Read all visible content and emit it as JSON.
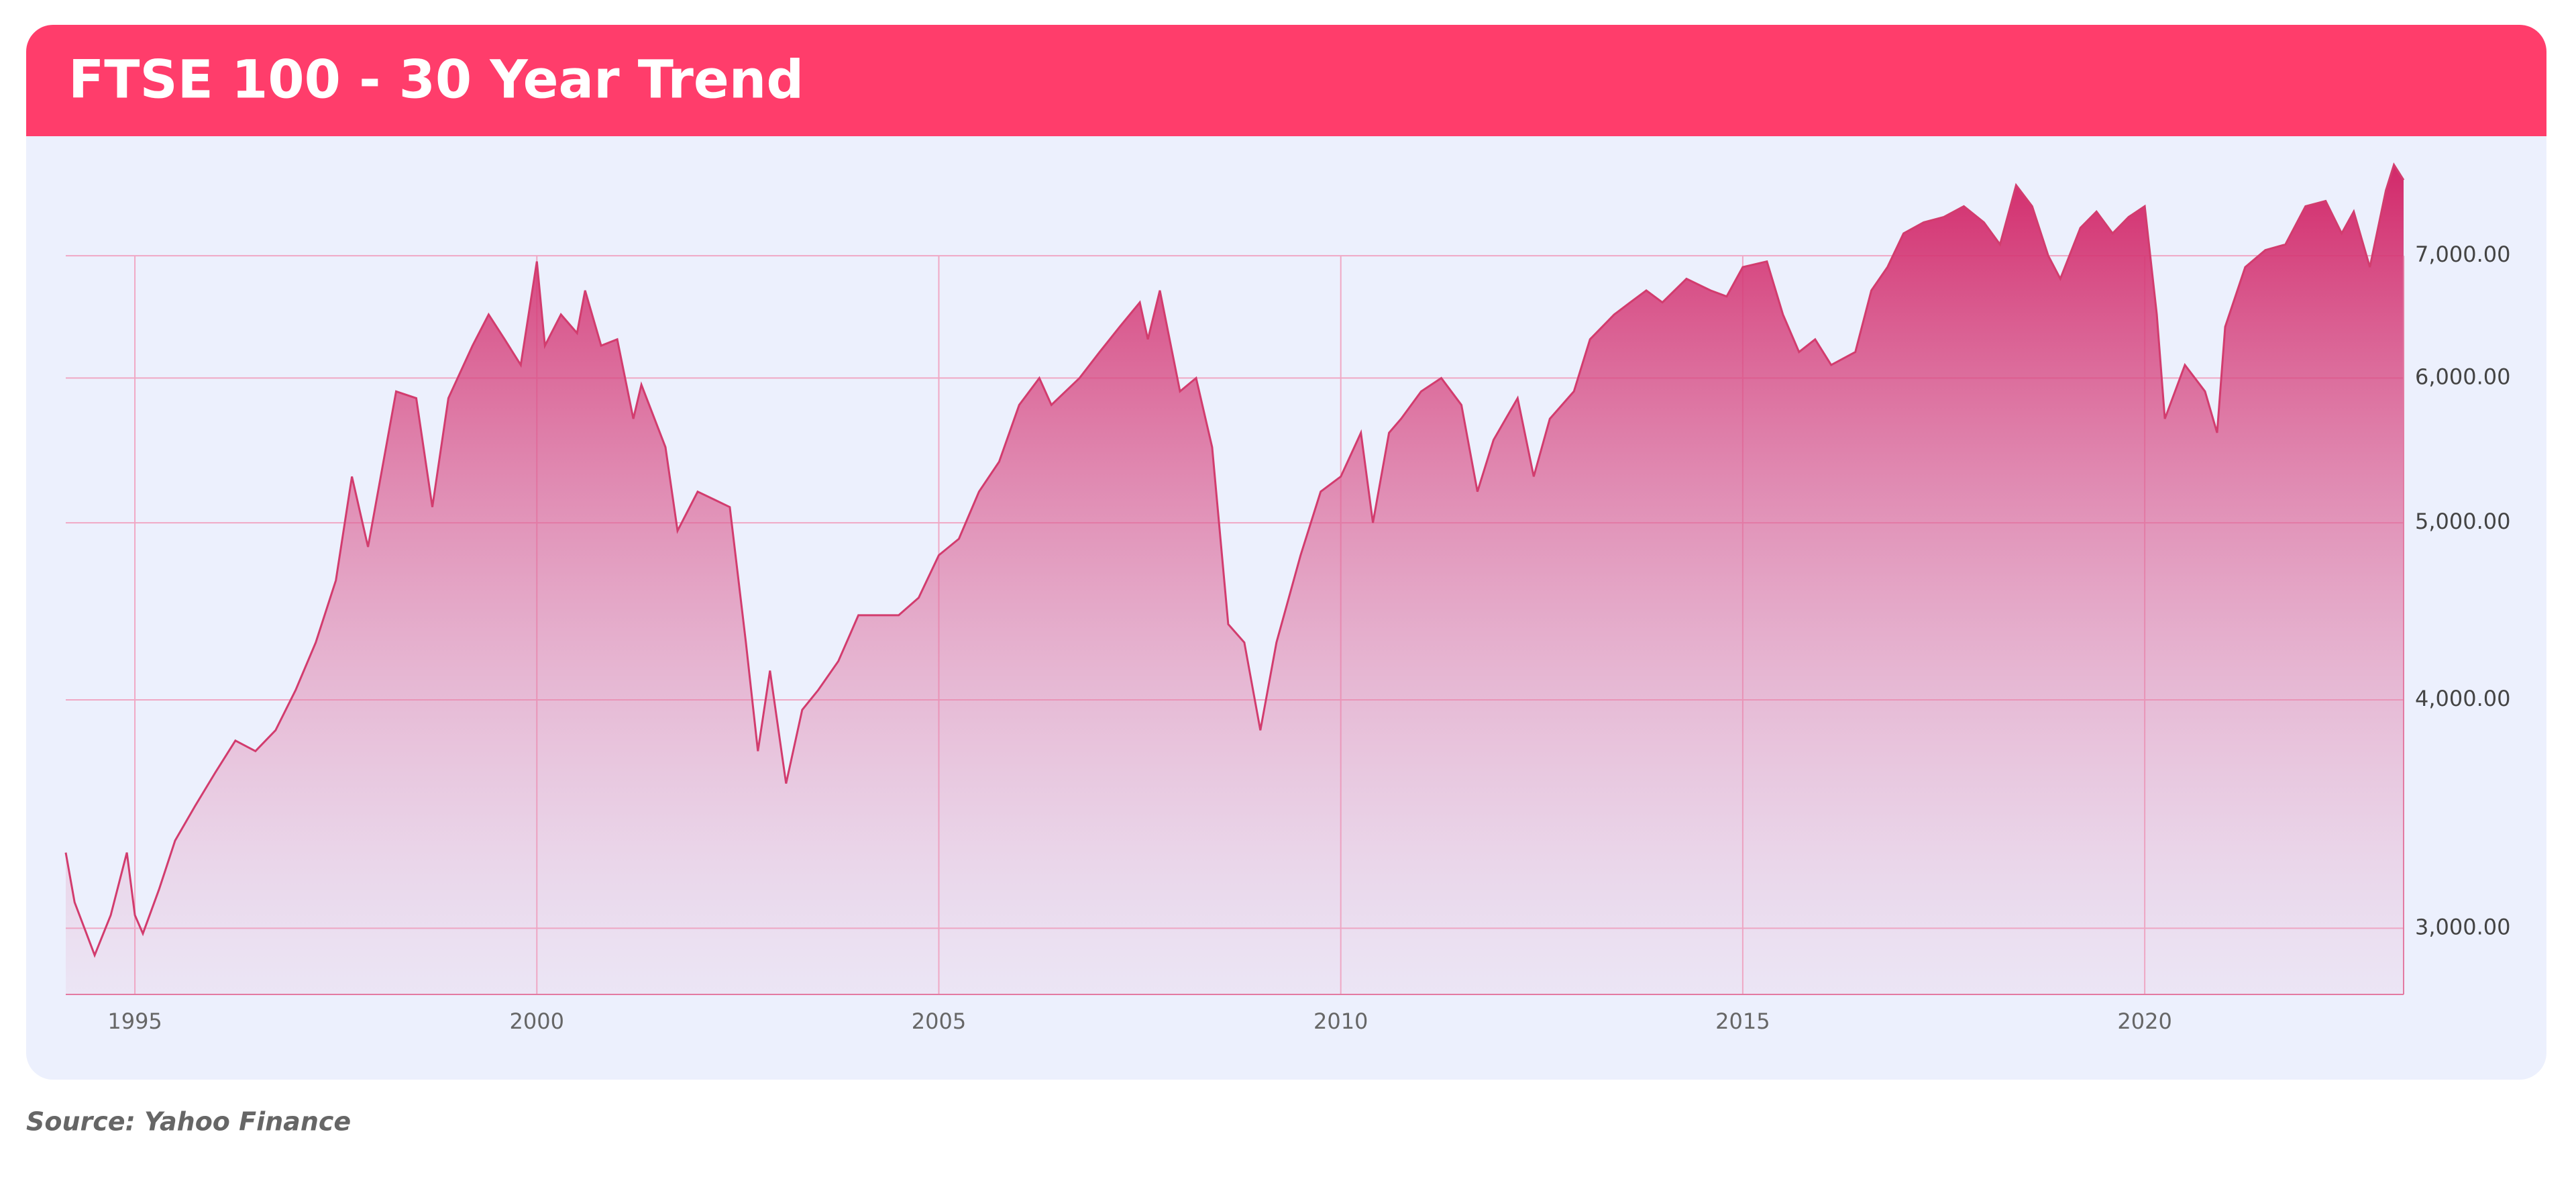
{
  "chart_data": {
    "type": "area",
    "title": "FTSE 100 - 30 Year Trend",
    "source": "Source: Yahoo Finance",
    "x": [
      1994.14,
      1994.25,
      1994.5,
      1994.7,
      1994.9,
      1995.0,
      1995.1,
      1995.3,
      1995.5,
      1995.75,
      1996.0,
      1996.25,
      1996.5,
      1996.75,
      1997.0,
      1997.25,
      1997.5,
      1997.7,
      1997.9,
      1998.25,
      1998.5,
      1998.7,
      1998.9,
      1999.2,
      1999.4,
      1999.6,
      1999.8,
      2000.0,
      2000.1,
      2000.3,
      2000.5,
      2000.6,
      2000.8,
      2001.0,
      2001.2,
      2001.3,
      2001.6,
      2001.75,
      2002.0,
      2002.2,
      2002.4,
      2002.6,
      2002.75,
      2002.9,
      2003.1,
      2003.3,
      2003.5,
      2003.75,
      2004.0,
      2004.25,
      2004.5,
      2004.75,
      2005.0,
      2005.25,
      2005.5,
      2005.75,
      2006.0,
      2006.25,
      2006.4,
      2006.75,
      2007.0,
      2007.25,
      2007.5,
      2007.6,
      2007.75,
      2008.0,
      2008.2,
      2008.4,
      2008.6,
      2008.8,
      2009.0,
      2009.2,
      2009.5,
      2009.75,
      2010.0,
      2010.25,
      2010.4,
      2010.6,
      2010.75,
      2011.0,
      2011.25,
      2011.5,
      2011.7,
      2011.9,
      2012.2,
      2012.4,
      2012.6,
      2012.9,
      2013.1,
      2013.4,
      2013.6,
      2013.8,
      2014.0,
      2014.3,
      2014.6,
      2014.8,
      2015.0,
      2015.3,
      2015.5,
      2015.7,
      2015.9,
      2016.1,
      2016.4,
      2016.6,
      2016.8,
      2017.0,
      2017.25,
      2017.5,
      2017.75,
      2018.0,
      2018.2,
      2018.4,
      2018.6,
      2018.8,
      2018.95,
      2019.2,
      2019.4,
      2019.6,
      2019.8,
      2020.0,
      2020.15,
      2020.25,
      2020.5,
      2020.75,
      2020.9,
      2021.0,
      2021.25,
      2021.5,
      2021.75,
      2022.0,
      2022.25,
      2022.45,
      2022.6,
      2022.8,
      2023.0,
      2023.1,
      2023.22
    ],
    "values": [
      3300,
      3100,
      2900,
      3050,
      3300,
      3050,
      2980,
      3150,
      3350,
      3500,
      3650,
      3800,
      3750,
      3850,
      4050,
      4300,
      4650,
      5300,
      4850,
      5900,
      5850,
      5100,
      5850,
      6250,
      6500,
      6300,
      6100,
      6950,
      6250,
      6500,
      6350,
      6700,
      6250,
      6300,
      5700,
      5950,
      5500,
      4950,
      5200,
      5150,
      5100,
      4300,
      3750,
      4150,
      3600,
      3950,
      4050,
      4200,
      4450,
      4450,
      4450,
      4550,
      4800,
      4900,
      5200,
      5400,
      5800,
      6000,
      5800,
      6000,
      6200,
      6400,
      6600,
      6300,
      6700,
      5900,
      6000,
      5500,
      4400,
      4300,
      3850,
      4300,
      4800,
      5200,
      5300,
      5600,
      5000,
      5600,
      5700,
      5900,
      6000,
      5800,
      5200,
      5550,
      5850,
      5300,
      5700,
      5900,
      6300,
      6500,
      6600,
      6700,
      6600,
      6800,
      6700,
      6650,
      6900,
      6950,
      6500,
      6200,
      6300,
      6100,
      6200,
      6700,
      6900,
      7200,
      7300,
      7350,
      7450,
      7300,
      7100,
      7650,
      7450,
      7000,
      6800,
      7250,
      7400,
      7200,
      7350,
      7450,
      6500,
      5700,
      6100,
      5900,
      5600,
      6400,
      6900,
      7050,
      7100,
      7450,
      7500,
      7200,
      7400,
      6900,
      7600,
      7850,
      7700
    ],
    "color": "#d23c6e",
    "xlim": [
      1994.14,
      2023.22
    ],
    "xticks": [
      1995,
      2000,
      2005,
      2010,
      2015,
      2020
    ],
    "ylim": [
      2760,
      7900
    ],
    "log_y": true,
    "yticks": [
      {
        "value": 3000,
        "label": "3,000.00"
      },
      {
        "value": 4000,
        "label": "4,000.00"
      },
      {
        "value": 5000,
        "label": "5,000.00"
      },
      {
        "value": 6000,
        "label": "6,000.00"
      },
      {
        "value": 7000,
        "label": "7,000.00"
      }
    ],
    "grid": true
  }
}
